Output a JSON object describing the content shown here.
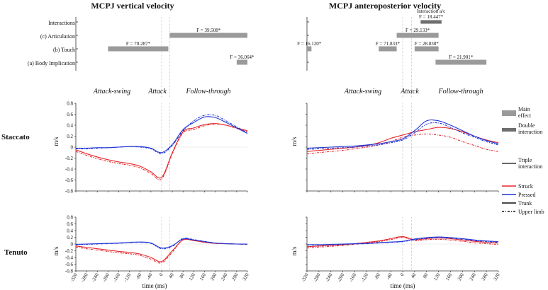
{
  "titles": {
    "left": "MCPJ vertical velocity",
    "right": "MCPJ anteroposterior velocity"
  },
  "significance_rows": [
    "Interactions",
    "(c) Articulation",
    "(b) Touch",
    "(a) Body Implication"
  ],
  "phases": [
    "Attack-swing",
    "Attack",
    "Follow-through"
  ],
  "row_labels": [
    "Staccato",
    "Tenuto"
  ],
  "ylabel": "m/s",
  "xlabel": "time (ms)",
  "legend": {
    "bar_items": [
      "Main effect",
      "Double interaction",
      "Triple interaction"
    ],
    "line_items": [
      "Struck",
      "Pressed",
      "Trunk",
      "Upper limb"
    ]
  },
  "colors": {
    "struck": "#e8262b",
    "pressed": "#1f35d6",
    "main_effect_bar": "#9a9a9a",
    "double_interaction_bar": "#6e6e6e",
    "phase_line": "#b0b0b0"
  },
  "chart_data": {
    "type": "line",
    "x": [
      -320,
      -280,
      -240,
      -200,
      -160,
      -120,
      -80,
      -40,
      0,
      40,
      80,
      120,
      160,
      200,
      240,
      280,
      320
    ],
    "xlim": [
      -320,
      320
    ],
    "xticks": [
      -320,
      -280,
      -240,
      -200,
      -160,
      -120,
      -80,
      -40,
      0,
      40,
      80,
      120,
      160,
      200,
      240,
      280,
      320
    ],
    "ylim": [
      -0.8,
      0.8
    ],
    "yticks": [
      0.8,
      0.6,
      0.4,
      0.2,
      0,
      -0.2,
      -0.4,
      -0.6,
      -0.8
    ],
    "phase_markers_ms": [
      0,
      30
    ],
    "significance": {
      "vertical": [
        {
          "row": 1,
          "start": 30,
          "end": 320,
          "label": "F = 39.508*",
          "kind": "main"
        },
        {
          "row": 2,
          "start": -200,
          "end": 25,
          "label": "F = 70.287*",
          "kind": "main"
        },
        {
          "row": 3,
          "start": 280,
          "end": 320,
          "label": "F = 36.064*",
          "kind": "main"
        }
      ],
      "anteroposterior": [
        {
          "row": 0,
          "start": 60,
          "end": 130,
          "label": "F = 18.447*",
          "note": "Interaction a/c",
          "kind": "double"
        },
        {
          "row": 1,
          "start": -20,
          "end": 120,
          "label": "F = 29.133*",
          "kind": "main"
        },
        {
          "row": 2,
          "start": -320,
          "end": -305,
          "label": "F = 16.120*",
          "kind": "main"
        },
        {
          "row": 2,
          "start": -80,
          "end": -20,
          "label": "F = 71.833*",
          "kind": "main"
        },
        {
          "row": 2,
          "start": 40,
          "end": 120,
          "label": "F = 28.838*",
          "kind": "main"
        },
        {
          "row": 3,
          "start": 110,
          "end": 280,
          "label": "F = 21.901*",
          "kind": "main"
        }
      ]
    },
    "panels": [
      {
        "row": "Staccato",
        "col": "vertical",
        "series": [
          {
            "name": "Struck Trunk",
            "values": [
              -0.05,
              -0.12,
              -0.18,
              -0.23,
              -0.27,
              -0.3,
              -0.35,
              -0.45,
              -0.55,
              -0.1,
              0.28,
              0.35,
              0.41,
              0.43,
              0.4,
              0.35,
              0.3
            ]
          },
          {
            "name": "Struck Upper limb",
            "values": [
              -0.08,
              -0.15,
              -0.21,
              -0.26,
              -0.3,
              -0.33,
              -0.38,
              -0.48,
              -0.58,
              -0.12,
              0.26,
              0.32,
              0.39,
              0.42,
              0.4,
              0.34,
              0.28
            ]
          },
          {
            "name": "Pressed Trunk",
            "values": [
              -0.02,
              -0.02,
              -0.01,
              -0.01,
              0.0,
              0.01,
              0.01,
              -0.02,
              -0.1,
              0.05,
              0.32,
              0.45,
              0.55,
              0.54,
              0.45,
              0.35,
              0.25
            ]
          },
          {
            "name": "Pressed Upper limb",
            "values": [
              -0.03,
              -0.03,
              -0.02,
              -0.01,
              0.0,
              0.01,
              0.0,
              -0.03,
              -0.12,
              0.03,
              0.3,
              0.48,
              0.58,
              0.58,
              0.48,
              0.37,
              0.26
            ]
          }
        ]
      },
      {
        "row": "Staccato",
        "col": "anteroposterior",
        "series": [
          {
            "name": "Struck Trunk",
            "values": [
              -0.08,
              -0.06,
              -0.04,
              -0.02,
              0.0,
              0.03,
              0.08,
              0.16,
              0.22,
              0.28,
              0.32,
              0.36,
              0.34,
              0.28,
              0.2,
              0.13,
              0.08
            ]
          },
          {
            "name": "Struck Upper limb",
            "values": [
              -0.12,
              -0.1,
              -0.08,
              -0.06,
              -0.03,
              0.0,
              0.04,
              0.1,
              0.18,
              0.22,
              0.24,
              0.22,
              0.18,
              0.1,
              0.03,
              -0.04,
              -0.08
            ]
          },
          {
            "name": "Pressed Trunk",
            "values": [
              -0.02,
              -0.01,
              0.0,
              0.01,
              0.02,
              0.04,
              0.06,
              0.1,
              0.15,
              0.3,
              0.48,
              0.48,
              0.4,
              0.3,
              0.2,
              0.12,
              0.06
            ]
          },
          {
            "name": "Pressed Upper limb",
            "values": [
              -0.04,
              -0.03,
              -0.02,
              -0.01,
              0.0,
              0.02,
              0.04,
              0.08,
              0.13,
              0.26,
              0.42,
              0.44,
              0.36,
              0.26,
              0.18,
              0.1,
              0.04
            ]
          }
        ]
      },
      {
        "row": "Tenuto",
        "col": "vertical",
        "series": [
          {
            "name": "Struck Trunk",
            "values": [
              -0.06,
              -0.1,
              -0.14,
              -0.18,
              -0.22,
              -0.25,
              -0.3,
              -0.4,
              -0.52,
              -0.2,
              0.12,
              0.1,
              0.05,
              0.02,
              0.01,
              0.0,
              0.0
            ]
          },
          {
            "name": "Struck Upper limb",
            "values": [
              -0.09,
              -0.14,
              -0.18,
              -0.22,
              -0.26,
              -0.29,
              -0.34,
              -0.45,
              -0.56,
              -0.24,
              0.14,
              0.12,
              0.06,
              0.02,
              0.01,
              0.0,
              -0.01
            ]
          },
          {
            "name": "Pressed Trunk",
            "values": [
              -0.01,
              0.0,
              0.01,
              0.02,
              0.03,
              0.05,
              0.06,
              0.03,
              -0.12,
              -0.05,
              0.15,
              0.12,
              0.07,
              0.03,
              0.01,
              0.0,
              0.0
            ]
          },
          {
            "name": "Pressed Upper limb",
            "values": [
              -0.02,
              -0.01,
              0.0,
              0.01,
              0.02,
              0.04,
              0.05,
              0.02,
              -0.14,
              -0.07,
              0.17,
              0.13,
              0.08,
              0.03,
              0.01,
              0.0,
              -0.01
            ]
          }
        ]
      },
      {
        "row": "Tenuto",
        "col": "anteroposterior",
        "series": [
          {
            "name": "Struck Trunk",
            "values": [
              -0.08,
              -0.06,
              -0.04,
              -0.02,
              0.01,
              0.05,
              0.09,
              0.16,
              0.22,
              0.13,
              0.16,
              0.18,
              0.16,
              0.12,
              0.08,
              0.05,
              0.03
            ]
          },
          {
            "name": "Struck Upper limb",
            "values": [
              -0.12,
              -0.09,
              -0.07,
              -0.04,
              -0.01,
              0.03,
              0.07,
              0.13,
              0.2,
              0.1,
              0.13,
              0.14,
              0.12,
              0.08,
              0.04,
              0.01,
              -0.01
            ]
          },
          {
            "name": "Pressed Trunk",
            "values": [
              -0.02,
              -0.02,
              -0.01,
              0.0,
              0.01,
              0.02,
              0.04,
              0.06,
              0.08,
              0.15,
              0.19,
              0.21,
              0.19,
              0.16,
              0.12,
              0.09,
              0.07
            ]
          },
          {
            "name": "Pressed Upper limb",
            "values": [
              -0.03,
              -0.03,
              -0.02,
              -0.01,
              0.0,
              0.01,
              0.03,
              0.05,
              0.07,
              0.13,
              0.17,
              0.19,
              0.17,
              0.14,
              0.1,
              0.07,
              0.05
            ]
          }
        ]
      }
    ]
  }
}
